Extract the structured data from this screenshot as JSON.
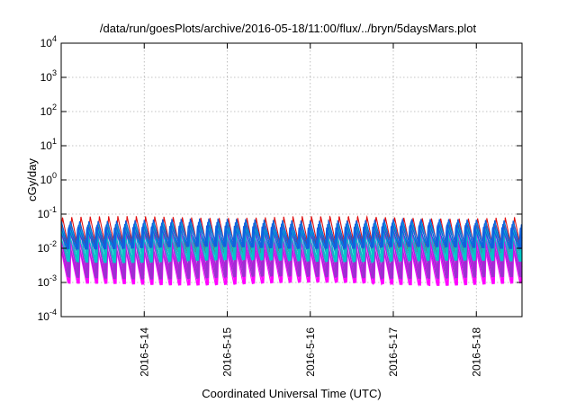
{
  "chart_data": {
    "type": "line",
    "title": "/data/run/goesPlots/archive/2016-05-18/11:00/flux/../bryn/5daysMars.plot",
    "xlabel": "Coordinated Universal Time (UTC)",
    "ylabel": "cGy/day",
    "yscale": "log",
    "ylim": [
      0.0001,
      10000
    ],
    "y_ticks": [
      {
        "value": 0.0001,
        "base": "10",
        "exp": "-4"
      },
      {
        "value": 0.001,
        "base": "10",
        "exp": "-3"
      },
      {
        "value": 0.01,
        "base": "10",
        "exp": "-2"
      },
      {
        "value": 0.1,
        "base": "10",
        "exp": "-1"
      },
      {
        "value": 1,
        "base": "10",
        "exp": "0"
      },
      {
        "value": 10,
        "base": "10",
        "exp": "1"
      },
      {
        "value": 100,
        "base": "10",
        "exp": "2"
      },
      {
        "value": 1000,
        "base": "10",
        "exp": "3"
      },
      {
        "value": 10000,
        "base": "10",
        "exp": "4"
      }
    ],
    "xlim_days": [
      0,
      5.55
    ],
    "x_ticks": [
      {
        "day": 1,
        "label": "2016-5-14"
      },
      {
        "day": 2,
        "label": "2016-5-15"
      },
      {
        "day": 3,
        "label": "2016-5-16"
      },
      {
        "day": 4,
        "label": "2016-5-17"
      },
      {
        "day": 5,
        "label": "2016-5-18"
      }
    ],
    "grid": true,
    "cycle_days": 0.1111,
    "series": [
      {
        "name": "red",
        "color": "#e01010",
        "peak": 0.085,
        "trough": 0.006
      },
      {
        "name": "magenta",
        "color": "#ff00ff",
        "peak": 0.03,
        "trough": 0.00085
      },
      {
        "name": "purple",
        "color": "#9b30d0",
        "peak": 0.04,
        "trough": 0.0013
      },
      {
        "name": "cyan",
        "color": "#00c8c8",
        "peak": 0.065,
        "trough": 0.004
      },
      {
        "name": "blue",
        "color": "#1060e0",
        "peak": 0.07,
        "trough": 0.01
      }
    ]
  }
}
